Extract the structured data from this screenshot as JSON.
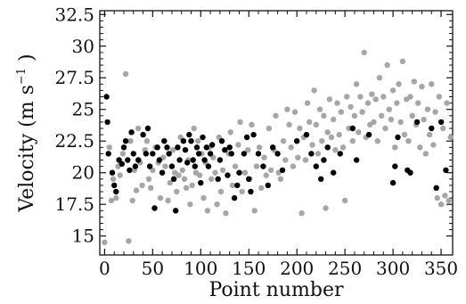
{
  "chart_data": {
    "type": "scatter",
    "title": "",
    "xlabel": "Point number",
    "ylabel": {
      "prefix": "Velocity (m s",
      "superscript": "−1",
      "suffix": " )"
    },
    "xlim": [
      -5,
      362
    ],
    "ylim": [
      13.5,
      32.8
    ],
    "x_ticks": [
      0,
      50,
      100,
      150,
      200,
      250,
      300,
      350
    ],
    "x_tick_labels": [
      "0",
      "50",
      "100",
      "150",
      "200",
      "250",
      "300",
      "350"
    ],
    "y_ticks": [
      15,
      17.5,
      20,
      22.5,
      25,
      27.5,
      30,
      32.5
    ],
    "y_tick_labels": [
      "15",
      "17.5",
      "20",
      "22.5",
      "25",
      "27.5",
      "30",
      "32.5"
    ],
    "grid": false,
    "legend": "none",
    "series": [
      {
        "color": "#000000",
        "points": [
          [
            2,
            26.0
          ],
          [
            3,
            24.0
          ],
          [
            4,
            21.5
          ],
          [
            8,
            20.0
          ],
          [
            10,
            19.0
          ],
          [
            12,
            18.5
          ],
          [
            15,
            21.0
          ],
          [
            18,
            20.7
          ],
          [
            20,
            22.0
          ],
          [
            22,
            22.5
          ],
          [
            24,
            21.0
          ],
          [
            26,
            20.2
          ],
          [
            28,
            23.2
          ],
          [
            30,
            21.5
          ],
          [
            32,
            20.5
          ],
          [
            35,
            21.0
          ],
          [
            40,
            23.0
          ],
          [
            43,
            21.5
          ],
          [
            45,
            23.5
          ],
          [
            47,
            20.5
          ],
          [
            50,
            21.5
          ],
          [
            52,
            17.2
          ],
          [
            55,
            22.0
          ],
          [
            57,
            21.0
          ],
          [
            60,
            20.0
          ],
          [
            62,
            22.5
          ],
          [
            65,
            22.0
          ],
          [
            67,
            21.5
          ],
          [
            70,
            20.5
          ],
          [
            72,
            19.5
          ],
          [
            74,
            17.0
          ],
          [
            76,
            22.0
          ],
          [
            78,
            21.0
          ],
          [
            82,
            22.5
          ],
          [
            84,
            21.8
          ],
          [
            86,
            20.8
          ],
          [
            88,
            23.0
          ],
          [
            90,
            22.5
          ],
          [
            92,
            21.0
          ],
          [
            94,
            20.5
          ],
          [
            96,
            22.0
          ],
          [
            98,
            21.5
          ],
          [
            100,
            19.2
          ],
          [
            102,
            22.8
          ],
          [
            104,
            21.0
          ],
          [
            106,
            22.0
          ],
          [
            108,
            20.5
          ],
          [
            110,
            21.5
          ],
          [
            112,
            22.2
          ],
          [
            118,
            19.5
          ],
          [
            120,
            21.0
          ],
          [
            122,
            22.5
          ],
          [
            125,
            21.8
          ],
          [
            128,
            19.8
          ],
          [
            130,
            22.0
          ],
          [
            132,
            21.5
          ],
          [
            135,
            18.0
          ],
          [
            138,
            19.0
          ],
          [
            140,
            20.0
          ],
          [
            145,
            21.5
          ],
          [
            148,
            22.8
          ],
          [
            150,
            19.5
          ],
          [
            152,
            18.5
          ],
          [
            155,
            23.0
          ],
          [
            160,
            21.5
          ],
          [
            165,
            20.5
          ],
          [
            170,
            19.0
          ],
          [
            175,
            22.0
          ],
          [
            180,
            21.5
          ],
          [
            185,
            20.2
          ],
          [
            200,
            22.5
          ],
          [
            210,
            23.0
          ],
          [
            215,
            21.5
          ],
          [
            220,
            20.5
          ],
          [
            225,
            19.5
          ],
          [
            228,
            21.0
          ],
          [
            232,
            22.0
          ],
          [
            238,
            20.0
          ],
          [
            245,
            21.5
          ],
          [
            258,
            23.5
          ],
          [
            262,
            21.0
          ],
          [
            275,
            23.0
          ],
          [
            300,
            19.2
          ],
          [
            302,
            20.5
          ],
          [
            305,
            22.8
          ],
          [
            315,
            20.2
          ],
          [
            318,
            20.0
          ],
          [
            325,
            24.0
          ],
          [
            340,
            23.5
          ],
          [
            345,
            18.8
          ],
          [
            350,
            24.0
          ],
          [
            355,
            20.2
          ]
        ]
      },
      {
        "color": "#a6a6a6",
        "points": [
          [
            0,
            14.5
          ],
          [
            5,
            22.0
          ],
          [
            7,
            17.8
          ],
          [
            9,
            19.5
          ],
          [
            12,
            18.0
          ],
          [
            14,
            20.5
          ],
          [
            16,
            19.8
          ],
          [
            19,
            21.5
          ],
          [
            22,
            27.8
          ],
          [
            25,
            14.6
          ],
          [
            27,
            22.5
          ],
          [
            29,
            17.8
          ],
          [
            31,
            20.2
          ],
          [
            33,
            18.6
          ],
          [
            35,
            23.5
          ],
          [
            37,
            20.8
          ],
          [
            39,
            19.0
          ],
          [
            42,
            21.8
          ],
          [
            44,
            22.5
          ],
          [
            46,
            19.5
          ],
          [
            48,
            18.8
          ],
          [
            50,
            20.2
          ],
          [
            53,
            22.0
          ],
          [
            56,
            20.8
          ],
          [
            58,
            18.0
          ],
          [
            61,
            21.2
          ],
          [
            63,
            20.5
          ],
          [
            66,
            17.8
          ],
          [
            68,
            19.2
          ],
          [
            71,
            21.8
          ],
          [
            73,
            20.0
          ],
          [
            75,
            18.5
          ],
          [
            77,
            19.8
          ],
          [
            79,
            22.8
          ],
          [
            81,
            20.2
          ],
          [
            83,
            19.5
          ],
          [
            85,
            18.8
          ],
          [
            87,
            21.0
          ],
          [
            89,
            17.5
          ],
          [
            91,
            19.0
          ],
          [
            93,
            23.5
          ],
          [
            95,
            20.0
          ],
          [
            97,
            22.5
          ],
          [
            99,
            19.8
          ],
          [
            101,
            21.5
          ],
          [
            103,
            18.0
          ],
          [
            105,
            20.8
          ],
          [
            107,
            17.0
          ],
          [
            109,
            22.0
          ],
          [
            111,
            19.5
          ],
          [
            113,
            21.2
          ],
          [
            115,
            20.0
          ],
          [
            117,
            17.5
          ],
          [
            119,
            22.8
          ],
          [
            121,
            18.5
          ],
          [
            123,
            20.2
          ],
          [
            126,
            16.8
          ],
          [
            129,
            21.5
          ],
          [
            131,
            23.2
          ],
          [
            133,
            19.0
          ],
          [
            136,
            20.5
          ],
          [
            139,
            22.2
          ],
          [
            141,
            24.0
          ],
          [
            143,
            18.5
          ],
          [
            146,
            20.0
          ],
          [
            149,
            21.8
          ],
          [
            151,
            19.5
          ],
          [
            153,
            23.8
          ],
          [
            156,
            17.0
          ],
          [
            158,
            20.5
          ],
          [
            161,
            22.0
          ],
          [
            163,
            18.8
          ],
          [
            166,
            21.2
          ],
          [
            168,
            19.8
          ],
          [
            171,
            23.5
          ],
          [
            173,
            20.2
          ],
          [
            176,
            21.8
          ],
          [
            178,
            24.5
          ],
          [
            181,
            20.0
          ],
          [
            183,
            19.5
          ],
          [
            186,
            22.5
          ],
          [
            188,
            21.0
          ],
          [
            190,
            25.0
          ],
          [
            192,
            23.8
          ],
          [
            194,
            22.0
          ],
          [
            196,
            20.5
          ],
          [
            198,
            24.8
          ],
          [
            201,
            21.2
          ],
          [
            203,
            23.5
          ],
          [
            205,
            16.8
          ],
          [
            207,
            22.8
          ],
          [
            209,
            21.0
          ],
          [
            211,
            25.5
          ],
          [
            213,
            24.0
          ],
          [
            216,
            22.2
          ],
          [
            218,
            26.5
          ],
          [
            220,
            23.8
          ],
          [
            222,
            21.5
          ],
          [
            224,
            25.0
          ],
          [
            226,
            22.5
          ],
          [
            228,
            24.5
          ],
          [
            230,
            17.2
          ],
          [
            232,
            23.2
          ],
          [
            234,
            25.8
          ],
          [
            236,
            22.8
          ],
          [
            238,
            24.2
          ],
          [
            240,
            21.8
          ],
          [
            242,
            25.5
          ],
          [
            244,
            23.0
          ],
          [
            246,
            24.8
          ],
          [
            248,
            22.0
          ],
          [
            250,
            17.8
          ],
          [
            252,
            26.0
          ],
          [
            254,
            23.5
          ],
          [
            256,
            25.2
          ],
          [
            258,
            22.5
          ],
          [
            260,
            24.5
          ],
          [
            262,
            27.0
          ],
          [
            264,
            23.2
          ],
          [
            266,
            26.0
          ],
          [
            268,
            24.8
          ],
          [
            270,
            29.5
          ],
          [
            272,
            22.8
          ],
          [
            274,
            25.5
          ],
          [
            276,
            23.8
          ],
          [
            278,
            26.2
          ],
          [
            280,
            24.0
          ],
          [
            282,
            25.8
          ],
          [
            284,
            22.5
          ],
          [
            286,
            27.5
          ],
          [
            288,
            24.5
          ],
          [
            290,
            26.0
          ],
          [
            292,
            23.5
          ],
          [
            294,
            28.5
          ],
          [
            296,
            25.0
          ],
          [
            298,
            24.2
          ],
          [
            300,
            26.5
          ],
          [
            302,
            22.0
          ],
          [
            304,
            25.5
          ],
          [
            306,
            27.0
          ],
          [
            308,
            24.0
          ],
          [
            310,
            28.8
          ],
          [
            312,
            23.0
          ],
          [
            314,
            25.8
          ],
          [
            316,
            22.5
          ],
          [
            318,
            26.0
          ],
          [
            320,
            24.5
          ],
          [
            322,
            27.2
          ],
          [
            324,
            23.8
          ],
          [
            326,
            25.5
          ],
          [
            328,
            22.0
          ],
          [
            330,
            26.8
          ],
          [
            332,
            24.2
          ],
          [
            334,
            21.5
          ],
          [
            336,
            25.0
          ],
          [
            338,
            23.0
          ],
          [
            340,
            27.0
          ],
          [
            342,
            22.2
          ],
          [
            344,
            24.8
          ],
          [
            346,
            18.0
          ],
          [
            348,
            26.0
          ],
          [
            350,
            17.5
          ],
          [
            352,
            23.5
          ],
          [
            354,
            18.2
          ],
          [
            356,
            25.5
          ],
          [
            358,
            17.8
          ],
          [
            360,
            22.8
          ]
        ]
      }
    ]
  }
}
